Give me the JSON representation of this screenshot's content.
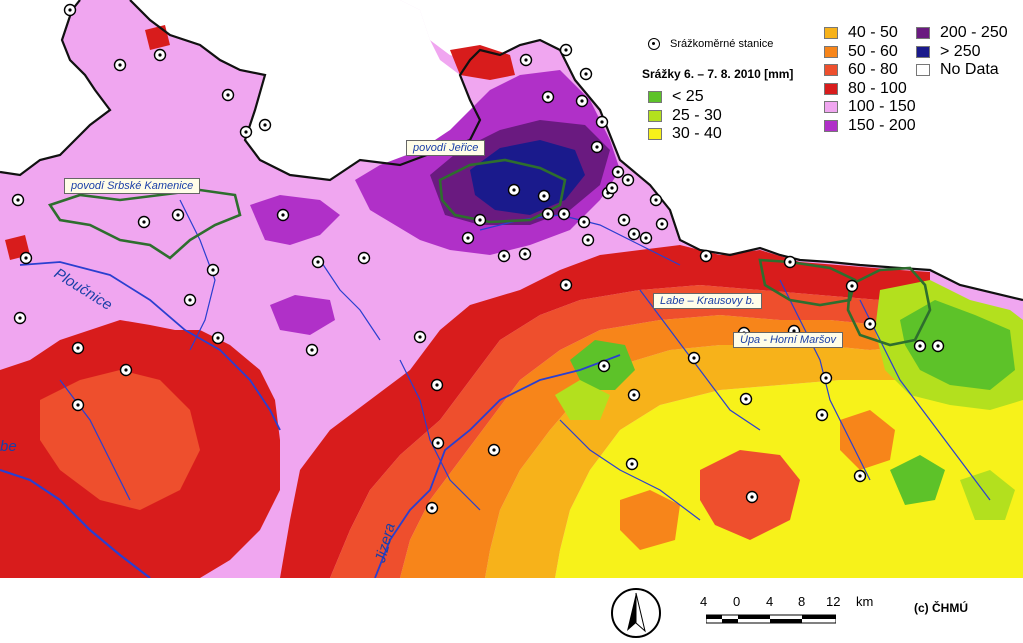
{
  "legend": {
    "title": "Srážky 6. – 7. 8. 2010 [mm]",
    "stations_label": "Srážkoměrné stanice",
    "classes": [
      {
        "label": "< 25",
        "color": "#5dc229"
      },
      {
        "label": "25 - 30",
        "color": "#b3e01e"
      },
      {
        "label": "30 - 40",
        "color": "#f7f21a"
      },
      {
        "label": "40 - 50",
        "color": "#f7b21a"
      },
      {
        "label": "50 - 60",
        "color": "#f7851a"
      },
      {
        "label": "60 - 80",
        "color": "#ee4f2d"
      },
      {
        "label": "80 - 100",
        "color": "#d81c1c"
      },
      {
        "label": "100 - 150",
        "color": "#f0a6f0"
      },
      {
        "label": "150 - 200",
        "color": "#b030c8"
      },
      {
        "label": "200 - 250",
        "color": "#6a1a80"
      },
      {
        "label": "> 250",
        "color": "#1a1a8c"
      },
      {
        "label": "No Data",
        "color": "#ffffff"
      }
    ]
  },
  "callouts": {
    "srbske": "povodí Srbské Kamenice",
    "jerice": "povodí Jeřice",
    "labe": "Labe – Krausovy b.",
    "upa": "Úpa - Horní Maršov"
  },
  "rivers": {
    "plucnice": "Ploučnice",
    "jizera": "Jizera",
    "labe_edge": "be"
  },
  "scale": {
    "ticks": [
      "4",
      "0",
      "4",
      "8",
      "12"
    ],
    "unit": "km"
  },
  "copyright": "(c) ČHMÚ",
  "colors": {
    "border": "#111111",
    "basin_outline": "#2e6e2e",
    "river": "#2a3fd0"
  }
}
